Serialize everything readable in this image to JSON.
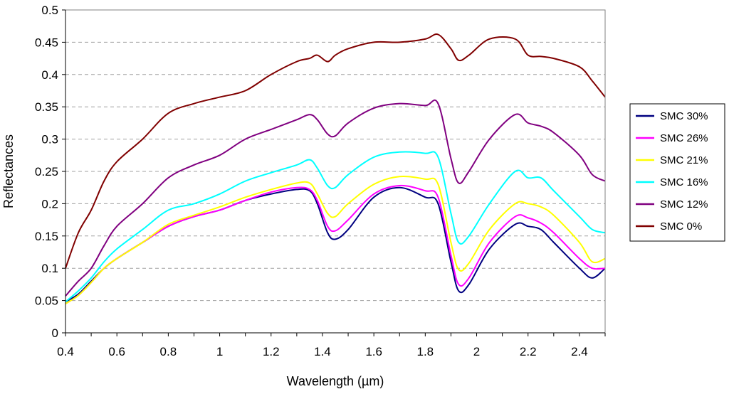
{
  "chart_data": {
    "type": "line",
    "title": "",
    "xlabel": "Wavelength (µm)",
    "ylabel": "Reflectances",
    "xlim": [
      0.4,
      2.5
    ],
    "ylim": [
      0,
      0.5
    ],
    "x_ticks": [
      "0.4",
      "0.6",
      "0.8",
      "1",
      "1.2",
      "1.4",
      "1.6",
      "1.8",
      "2",
      "2.2",
      "2.4"
    ],
    "y_ticks": [
      "0",
      "0.05",
      "0.1",
      "0.15",
      "0.2",
      "0.25",
      "0.3",
      "0.35",
      "0.4",
      "0.45",
      "0.5"
    ],
    "grid": "horizontal dashed",
    "legend_position": "right",
    "x": [
      0.4,
      0.45,
      0.5,
      0.55,
      0.6,
      0.7,
      0.8,
      0.9,
      1.0,
      1.1,
      1.2,
      1.3,
      1.35,
      1.38,
      1.42,
      1.45,
      1.5,
      1.6,
      1.7,
      1.8,
      1.85,
      1.9,
      1.93,
      1.97,
      2.05,
      2.15,
      2.2,
      2.25,
      2.3,
      2.4,
      2.45,
      2.5
    ],
    "series": [
      {
        "name": "SMC 30%",
        "color": "#000080",
        "values": [
          0.048,
          0.06,
          0.08,
          0.1,
          0.115,
          0.14,
          0.165,
          0.18,
          0.19,
          0.205,
          0.215,
          0.222,
          0.22,
          0.2,
          0.155,
          0.145,
          0.16,
          0.21,
          0.225,
          0.21,
          0.2,
          0.11,
          0.065,
          0.075,
          0.13,
          0.168,
          0.165,
          0.16,
          0.14,
          0.1,
          0.085,
          0.1
        ]
      },
      {
        "name": "SMC 26%",
        "color": "#ff00ff",
        "values": [
          0.045,
          0.058,
          0.078,
          0.1,
          0.115,
          0.14,
          0.165,
          0.18,
          0.19,
          0.205,
          0.218,
          0.225,
          0.222,
          0.205,
          0.165,
          0.158,
          0.175,
          0.215,
          0.228,
          0.22,
          0.21,
          0.12,
          0.075,
          0.085,
          0.14,
          0.18,
          0.178,
          0.17,
          0.155,
          0.115,
          0.1,
          0.1
        ]
      },
      {
        "name": "SMC 21%",
        "color": "#ffff00",
        "values": [
          0.045,
          0.058,
          0.078,
          0.1,
          0.115,
          0.14,
          0.168,
          0.182,
          0.195,
          0.21,
          0.222,
          0.232,
          0.232,
          0.215,
          0.185,
          0.18,
          0.2,
          0.23,
          0.242,
          0.238,
          0.23,
          0.14,
          0.098,
          0.108,
          0.16,
          0.2,
          0.2,
          0.195,
          0.182,
          0.14,
          0.11,
          0.115
        ]
      },
      {
        "name": "SMC 16%",
        "color": "#00ffff",
        "values": [
          0.048,
          0.065,
          0.085,
          0.11,
          0.13,
          0.16,
          0.19,
          0.2,
          0.215,
          0.235,
          0.248,
          0.26,
          0.268,
          0.255,
          0.228,
          0.225,
          0.245,
          0.272,
          0.28,
          0.278,
          0.272,
          0.185,
          0.14,
          0.15,
          0.2,
          0.25,
          0.24,
          0.24,
          0.22,
          0.18,
          0.16,
          0.155
        ]
      },
      {
        "name": "SMC 12%",
        "color": "#800080",
        "values": [
          0.057,
          0.08,
          0.1,
          0.135,
          0.165,
          0.2,
          0.24,
          0.26,
          0.275,
          0.3,
          0.315,
          0.33,
          0.338,
          0.33,
          0.308,
          0.305,
          0.325,
          0.348,
          0.355,
          0.352,
          0.355,
          0.27,
          0.232,
          0.25,
          0.3,
          0.338,
          0.325,
          0.32,
          0.31,
          0.275,
          0.245,
          0.235
        ]
      },
      {
        "name": "SMC 0%",
        "color": "#800000",
        "values": [
          0.1,
          0.155,
          0.19,
          0.235,
          0.265,
          0.3,
          0.34,
          0.355,
          0.365,
          0.375,
          0.4,
          0.42,
          0.425,
          0.43,
          0.42,
          0.43,
          0.44,
          0.45,
          0.45,
          0.455,
          0.462,
          0.44,
          0.422,
          0.43,
          0.455,
          0.455,
          0.43,
          0.428,
          0.425,
          0.412,
          0.39,
          0.365
        ]
      }
    ]
  }
}
